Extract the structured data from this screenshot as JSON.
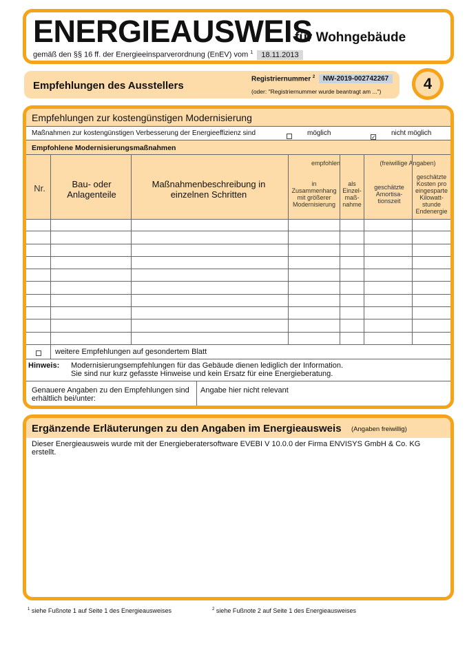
{
  "header": {
    "title": "ENERGIEAUSWEIS",
    "subtitle": "für Wohngebäude",
    "legal": "gemäß den §§ 16 ff. der Energieeinsparverordnung (EnEV) vom",
    "legal_sup": "1",
    "date": "18.11.2013"
  },
  "section": {
    "title": "Empfehlungen des Ausstellers",
    "reg_label": "Registriernummer",
    "reg_sup": "2",
    "reg_value": "NW-2019-002742267",
    "reg_note": "(oder: \"Registriernummer wurde beantragt am ...\")",
    "page_number": "4"
  },
  "modern": {
    "title": "Empfehlungen zur kostengünstigen Modernisierung",
    "measures_text": "Maßnahmen zur kostengünstigen Verbesserung der Energieeffizienz sind",
    "option_possible": "möglich",
    "option_possible_checked": false,
    "option_not_possible": "nicht möglich",
    "option_not_possible_checked": true,
    "recommended_title": "Empfohlene Modernisierungsmaßnahmen",
    "columns": {
      "nr": "Nr.",
      "part": "Bau- oder Anlagenteile",
      "desc": "Maßnahmenbeschreibung in einzelnen Schritten",
      "group1": "empfohlen",
      "combined": "in Zusammenhang mit größerer Modernisierung",
      "single": "als Einzel-maß-nahme",
      "group2": "(freiwillige Angaben)",
      "amort": "geschätzte Amortisa-tionszeit",
      "cost": "geschätzte Kosten pro eingesparte Kilowatt-stunde Endenergie"
    },
    "rows": [
      [],
      [],
      [],
      [],
      [],
      [],
      [],
      [],
      [],
      []
    ],
    "more_sheet": "weitere Empfehlungen auf gesondertem Blatt",
    "more_sheet_checked": false,
    "note_label": "Hinweis:",
    "note_line1": "Modernisierungsempfehlungen für das Gebäude dienen lediglich der Information.",
    "note_line2": "Sie sind nur kurz gefasste Hinweise und kein Ersatz für eine Energieberatung.",
    "details_label": "Genauere Angaben zu den Empfehlungen sind erhältlich bei/unter:",
    "details_value": "Angabe hier nicht relevant"
  },
  "extra": {
    "title": "Ergänzende Erläuterungen zu den Angaben im Energieausweis",
    "optional": "(Angaben freiwillig)",
    "text": "Dieser Energieausweis wurde mit der Energieberatersoftware EVEBI V 10.0.0 der Firma ENVISYS GmbH & Co. KG erstellt."
  },
  "footnotes": [
    {
      "sup": "1",
      "text": "siehe Fußnote 1 auf Seite 1 des Energieausweises"
    },
    {
      "sup": "2",
      "text": "siehe Fußnote 2 auf Seite 1 des Energieausweises"
    }
  ],
  "colors": {
    "accent": "#f5a31a",
    "panel": "#fddcaa"
  }
}
